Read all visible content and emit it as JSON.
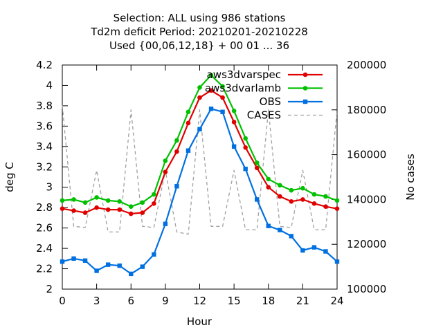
{
  "chart_data": {
    "type": "line",
    "title_lines": [
      "Selection: ALL using   986 stations",
      "Td2m deficit   Period: 20210201-20210228",
      "Used {00,06,12,18} + 00 01 ... 36"
    ],
    "xlabel": "Hour",
    "ylabel": "deg C",
    "y2label": "No cases",
    "xlim": [
      0,
      24
    ],
    "ylim": [
      2,
      4.2
    ],
    "y2lim": [
      100000,
      200000
    ],
    "xticks": [
      "0",
      "3",
      "6",
      "9",
      "12",
      "15",
      "18",
      "21",
      "24"
    ],
    "yticks": [
      "2",
      "2.2",
      "2.4",
      "2.6",
      "2.8",
      "3",
      "3.2",
      "3.4",
      "3.6",
      "3.8",
      "4",
      "4.2"
    ],
    "y2ticks": [
      "100000",
      "120000",
      "140000",
      "160000",
      "180000",
      "200000"
    ],
    "legend_position": "top-right",
    "grid": false,
    "x": [
      0,
      1,
      2,
      3,
      4,
      5,
      6,
      7,
      8,
      9,
      10,
      11,
      12,
      13,
      14,
      15,
      16,
      17,
      18,
      19,
      20,
      21,
      22,
      23,
      24
    ],
    "series": [
      {
        "name": "aws3dvarspec",
        "color": "#e00000",
        "marker": "circle",
        "values": [
          2.79,
          2.77,
          2.75,
          2.8,
          2.78,
          2.78,
          2.74,
          2.75,
          2.84,
          3.15,
          3.35,
          3.63,
          3.88,
          3.95,
          3.88,
          3.64,
          3.39,
          3.19,
          3.0,
          2.91,
          2.86,
          2.88,
          2.84,
          2.81,
          2.79
        ]
      },
      {
        "name": "aws3dvarlamb",
        "color": "#00c000",
        "marker": "circle",
        "values": [
          2.87,
          2.88,
          2.85,
          2.9,
          2.87,
          2.86,
          2.81,
          2.85,
          2.93,
          3.26,
          3.46,
          3.74,
          3.98,
          4.1,
          3.99,
          3.75,
          3.48,
          3.24,
          3.08,
          3.02,
          2.97,
          2.99,
          2.93,
          2.91,
          2.87
        ]
      },
      {
        "name": "OBS",
        "color": "#0070e0",
        "marker": "square",
        "values": [
          2.27,
          2.3,
          2.28,
          2.18,
          2.24,
          2.23,
          2.15,
          2.22,
          2.34,
          2.64,
          3.01,
          3.36,
          3.57,
          3.77,
          3.74,
          3.4,
          3.18,
          2.88,
          2.62,
          2.58,
          2.52,
          2.38,
          2.41,
          2.37,
          2.27
        ]
      },
      {
        "name": "CASES",
        "color": "#a0a0a0",
        "dash": true,
        "axis": "y2",
        "values": [
          182000,
          128000,
          127500,
          153000,
          125500,
          125500,
          180000,
          128000,
          127500,
          153000,
          125500,
          124500,
          180000,
          128000,
          128000,
          153000,
          126500,
          126500,
          180000,
          128000,
          127500,
          153000,
          126500,
          126500,
          180000
        ]
      }
    ]
  }
}
